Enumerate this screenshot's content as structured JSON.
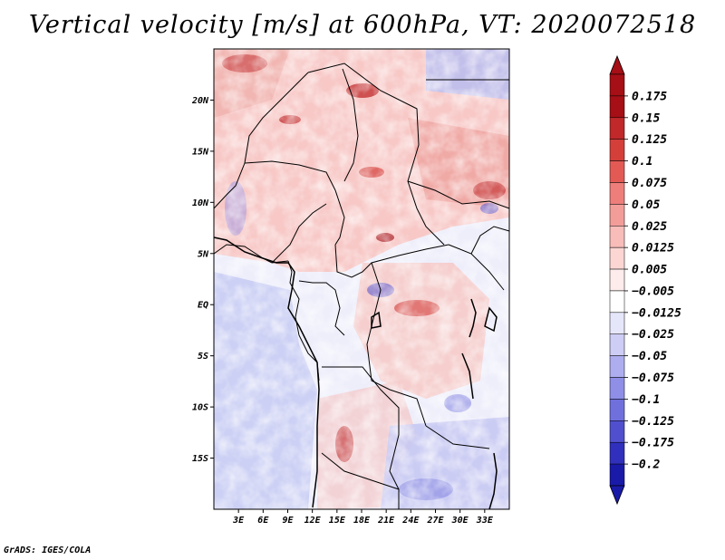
{
  "title": "Vertical velocity [m/s] at 600hPa, VT: 2020072518",
  "footer": "GrADS: IGES/COLA",
  "map": {
    "lon_range": [
      0,
      36
    ],
    "lat_range": [
      -20,
      25
    ],
    "lat_ticks": [
      {
        "value": 20,
        "label": "20N"
      },
      {
        "value": 15,
        "label": "15N"
      },
      {
        "value": 10,
        "label": "10N"
      },
      {
        "value": 5,
        "label": "5N"
      },
      {
        "value": 0,
        "label": "EQ"
      },
      {
        "value": -5,
        "label": "5S"
      },
      {
        "value": -10,
        "label": "10S"
      },
      {
        "value": -15,
        "label": "15S"
      }
    ],
    "lon_ticks": [
      {
        "value": 3,
        "label": "3E"
      },
      {
        "value": 6,
        "label": "6E"
      },
      {
        "value": 9,
        "label": "9E"
      },
      {
        "value": 12,
        "label": "12E"
      },
      {
        "value": 15,
        "label": "15E"
      },
      {
        "value": 18,
        "label": "18E"
      },
      {
        "value": 21,
        "label": "21E"
      },
      {
        "value": 24,
        "label": "24E"
      },
      {
        "value": 27,
        "label": "27E"
      },
      {
        "value": 30,
        "label": "30E"
      },
      {
        "value": 33,
        "label": "33E"
      }
    ]
  },
  "colorbar": {
    "levels": [
      {
        "label": "0.175",
        "color": "#a50f15"
      },
      {
        "label": "0.15",
        "color": "#c0282a"
      },
      {
        "label": "0.125",
        "color": "#d43f3a"
      },
      {
        "label": "0.1",
        "color": "#e35a55"
      },
      {
        "label": "0.075",
        "color": "#ee7e7a"
      },
      {
        "label": "0.05",
        "color": "#f39d99"
      },
      {
        "label": "0.025",
        "color": "#f8bdb9"
      },
      {
        "label": "0.0125",
        "color": "#fbd6d3"
      },
      {
        "label": "0.005",
        "color": "#fdeceb"
      },
      {
        "label": "−0.005",
        "color": "#ffffff"
      },
      {
        "label": "−0.0125",
        "color": "#e6e6fa"
      },
      {
        "label": "−0.025",
        "color": "#cdcdf6"
      },
      {
        "label": "−0.05",
        "color": "#adadf0"
      },
      {
        "label": "−0.075",
        "color": "#8f8fe8"
      },
      {
        "label": "−0.1",
        "color": "#7070dd"
      },
      {
        "label": "−0.125",
        "color": "#5050cf"
      },
      {
        "label": "−0.175",
        "color": "#3030bd"
      },
      {
        "label": "−0.2",
        "color": "#1a1aa8"
      }
    ],
    "top_color": "#a50f15",
    "bottom_color": "#1a1aa8"
  }
}
